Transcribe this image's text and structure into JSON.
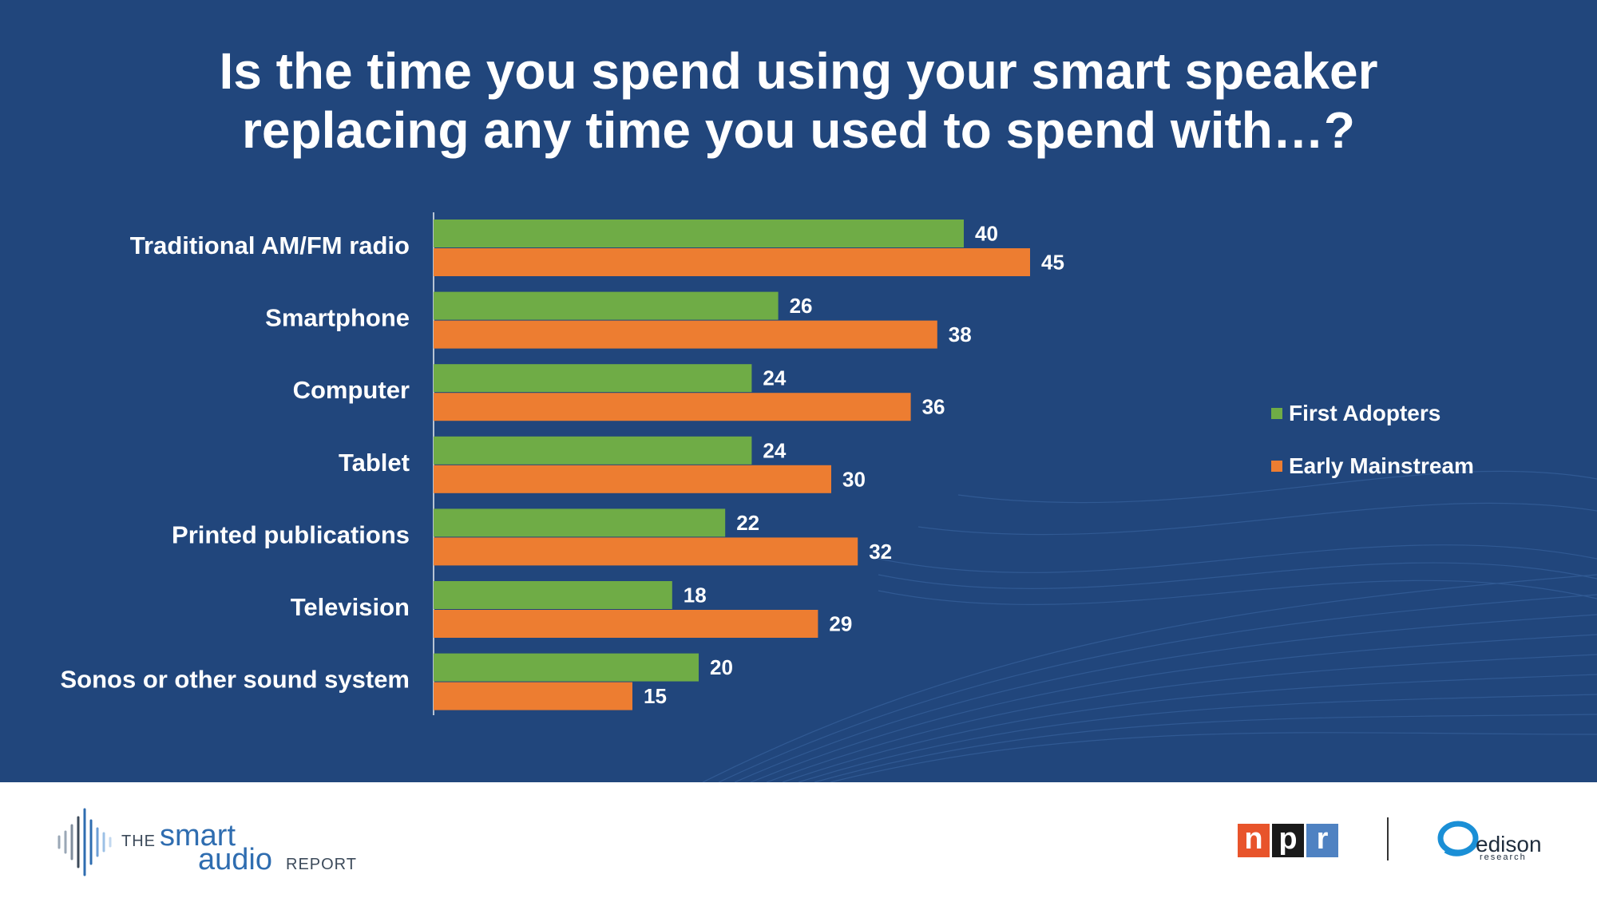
{
  "title_lines": [
    "Is the time you spend using your smart speaker",
    "replacing any time you used to spend with…?"
  ],
  "colors": {
    "background": "#21467c",
    "first_adopters": "#6fac46",
    "early_mainstream": "#ed7d31",
    "text": "#ffffff"
  },
  "chart_data": {
    "type": "bar",
    "orientation": "horizontal",
    "title": "Is the time you spend using your smart speaker replacing any time you used to spend with…?",
    "categories": [
      "Traditional AM/FM radio",
      "Smartphone",
      "Computer",
      "Tablet",
      "Printed publications",
      "Television",
      "Sonos or other sound system"
    ],
    "series": [
      {
        "name": "First Adopters",
        "color": "#6fac46",
        "values": [
          40,
          26,
          24,
          24,
          22,
          18,
          20
        ]
      },
      {
        "name": "Early Mainstream",
        "color": "#ed7d31",
        "values": [
          45,
          38,
          36,
          30,
          32,
          29,
          15
        ]
      }
    ],
    "xlim": [
      0,
      50
    ],
    "grid": false,
    "data_labels": true,
    "legend_position": "right"
  },
  "footer": {
    "smart_audio_logo": {
      "the": "THE",
      "smart": "smart",
      "audio": "audio",
      "report": "REPORT"
    },
    "npr_logo": {
      "letters": [
        "n",
        "p",
        "r"
      ],
      "colors": [
        "#e8542b",
        "#1a1a1a",
        "#4f82c2"
      ]
    },
    "edison_logo": {
      "name": "edison",
      "sub": "research"
    }
  }
}
